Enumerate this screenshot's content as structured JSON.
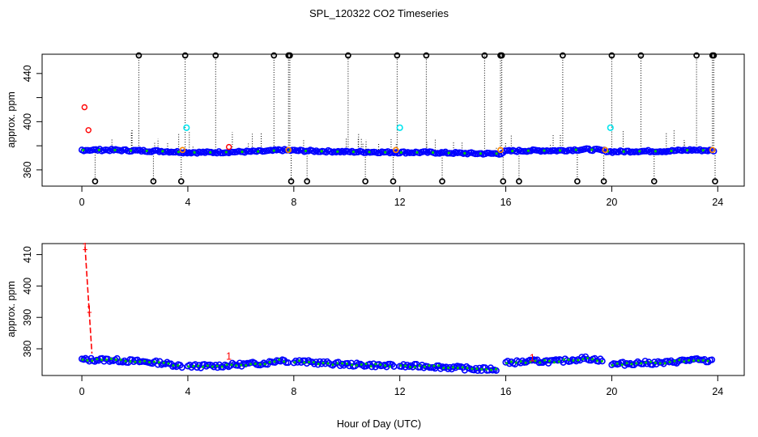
{
  "title": "SPL_120322  CO2 Timeseries",
  "xlabel": "Hour of Day (UTC)",
  "colors": {
    "background": "#ffffff",
    "frame": "#000000",
    "primary_series": "#0000ff",
    "fill_series": "#00cc00",
    "outlier": "#000000",
    "flagged": "#ff0000",
    "calibration": "#00e5ee",
    "orange_marker": "#ff8800",
    "fit_line": "#ff0000"
  },
  "chart_data": [
    {
      "type": "scatter",
      "title": "",
      "ylabel": "approx. ppm",
      "xlabel": "",
      "xlim": [
        -1.5,
        25
      ],
      "ylim": [
        346.5,
        456
      ],
      "xticks": [
        0,
        4,
        8,
        12,
        16,
        20,
        24
      ],
      "yticks": [
        360,
        380,
        400,
        420,
        440
      ],
      "ytick_labels": [
        "360",
        "",
        "400",
        "",
        "440"
      ],
      "baseline": [
        [
          0,
          376.5
        ],
        [
          1,
          376.5
        ],
        [
          2,
          376.0
        ],
        [
          3,
          375.5
        ],
        [
          4,
          374.5
        ],
        [
          5,
          374.5
        ],
        [
          6,
          375.0
        ],
        [
          7,
          375.5
        ],
        [
          7.5,
          376.5
        ],
        [
          8,
          376.0
        ],
        [
          9,
          375.5
        ],
        [
          10,
          375.0
        ],
        [
          11,
          374.8
        ],
        [
          12,
          374.5
        ],
        [
          13,
          374.5
        ],
        [
          14,
          374.0
        ],
        [
          15,
          373.5
        ],
        [
          15.8,
          373.5
        ],
        [
          16,
          375.5
        ],
        [
          17,
          376.0
        ],
        [
          18,
          376.0
        ],
        [
          19,
          377.0
        ],
        [
          19.5,
          376.5
        ],
        [
          20,
          375.0
        ],
        [
          21,
          375.5
        ],
        [
          22,
          375.5
        ],
        [
          23,
          376.5
        ],
        [
          23.8,
          376.0
        ]
      ],
      "outliers_high": [
        2.15,
        3.9,
        5.05,
        7.25,
        7.8,
        7.85,
        10.05,
        11.9,
        13.0,
        15.2,
        15.8,
        15.85,
        18.15,
        20.0,
        21.1,
        23.2,
        23.8,
        23.85
      ],
      "outliers_low": [
        0.5,
        2.7,
        3.75,
        7.9,
        8.5,
        10.7,
        11.75,
        13.6,
        15.9,
        16.5,
        18.7,
        19.7,
        21.6,
        23.9
      ],
      "outlier_high_value": 455,
      "outlier_low_value": 350.5,
      "flagged": [
        [
          0.1,
          412
        ],
        [
          0.25,
          393
        ],
        [
          5.55,
          379
        ]
      ],
      "calibration": [
        [
          3.95,
          395
        ],
        [
          12.0,
          395
        ],
        [
          19.95,
          395
        ]
      ],
      "orange_markers": [
        [
          3.8,
          376.5
        ],
        [
          7.8,
          376.5
        ],
        [
          11.85,
          376.5
        ],
        [
          15.8,
          376.5
        ],
        [
          19.75,
          376.5
        ],
        [
          23.8,
          376.5
        ]
      ]
    },
    {
      "type": "line",
      "title": "",
      "ylabel": "approx. ppm",
      "xlabel": "Hour of Day (UTC)",
      "xlim": [
        -1.5,
        25
      ],
      "ylim": [
        371.5,
        413.5
      ],
      "xticks": [
        0,
        4,
        8,
        12,
        16,
        20,
        24
      ],
      "yticks": [
        380,
        390,
        400,
        410
      ],
      "ytick_labels": [
        "380",
        "390",
        "400",
        "410"
      ],
      "segments": [
        [
          [
            0,
            376.5
          ],
          [
            1,
            376.5
          ],
          [
            2,
            376.0
          ],
          [
            3,
            375.5
          ],
          [
            3.8,
            374.5
          ]
        ],
        [
          [
            4,
            374.5
          ],
          [
            5,
            374.5
          ],
          [
            6,
            375.0
          ],
          [
            7,
            375.5
          ],
          [
            7.5,
            376.5
          ],
          [
            7.8,
            376.0
          ]
        ],
        [
          [
            8,
            376.0
          ],
          [
            9,
            375.5
          ],
          [
            10,
            375.0
          ],
          [
            11,
            374.8
          ],
          [
            11.8,
            374.5
          ]
        ],
        [
          [
            12,
            374.5
          ],
          [
            13,
            374.5
          ],
          [
            14,
            374.0
          ],
          [
            15,
            373.5
          ],
          [
            15.7,
            373.5
          ]
        ],
        [
          [
            16,
            375.5
          ],
          [
            17,
            376.0
          ],
          [
            18,
            376.0
          ],
          [
            18.5,
            376.5
          ],
          [
            19,
            377.0
          ],
          [
            19.5,
            376.5
          ],
          [
            19.7,
            376.0
          ]
        ],
        [
          [
            20,
            375.0
          ],
          [
            21,
            375.5
          ],
          [
            22,
            375.5
          ],
          [
            23,
            376.5
          ],
          [
            23.8,
            376.0
          ]
        ]
      ],
      "fit_line": [
        [
          0.12,
          412.5
        ],
        [
          0.38,
          378.5
        ]
      ],
      "labels": [
        {
          "text": "1",
          "x": 0.12,
          "y": 412.5
        },
        {
          "text": "1",
          "x": 0.28,
          "y": 392.5
        },
        {
          "text": "1",
          "x": 5.55,
          "y": 377.5
        },
        {
          "text": "1",
          "x": 17.0,
          "y": 377.0
        }
      ]
    }
  ]
}
